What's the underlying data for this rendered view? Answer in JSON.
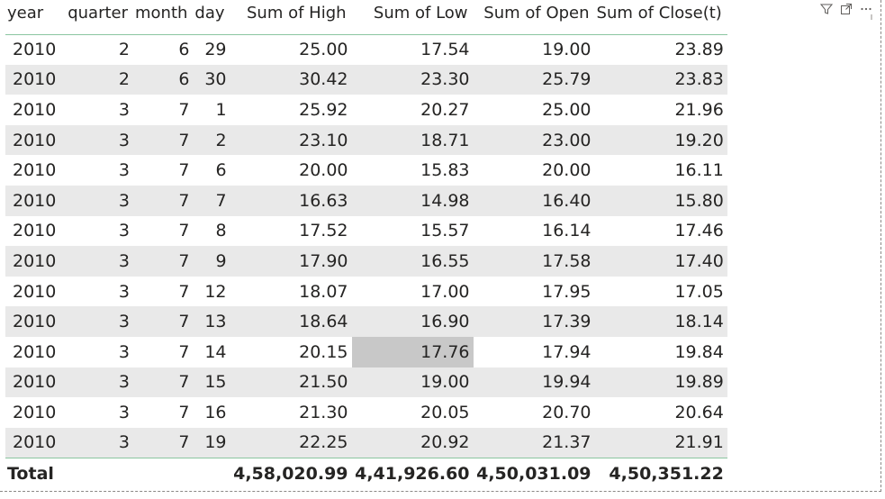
{
  "columns": [
    "year",
    "quarter",
    "month",
    "day",
    "Sum of High",
    "Sum of Low",
    "Sum of Open",
    "Sum of Close(t)"
  ],
  "rows": [
    [
      "2010",
      "2",
      "6",
      "29",
      "25.00",
      "17.54",
      "19.00",
      "23.89"
    ],
    [
      "2010",
      "2",
      "6",
      "30",
      "30.42",
      "23.30",
      "25.79",
      "23.83"
    ],
    [
      "2010",
      "3",
      "7",
      "1",
      "25.92",
      "20.27",
      "25.00",
      "21.96"
    ],
    [
      "2010",
      "3",
      "7",
      "2",
      "23.10",
      "18.71",
      "23.00",
      "19.20"
    ],
    [
      "2010",
      "3",
      "7",
      "6",
      "20.00",
      "15.83",
      "20.00",
      "16.11"
    ],
    [
      "2010",
      "3",
      "7",
      "7",
      "16.63",
      "14.98",
      "16.40",
      "15.80"
    ],
    [
      "2010",
      "3",
      "7",
      "8",
      "17.52",
      "15.57",
      "16.14",
      "17.46"
    ],
    [
      "2010",
      "3",
      "7",
      "9",
      "17.90",
      "16.55",
      "17.58",
      "17.40"
    ],
    [
      "2010",
      "3",
      "7",
      "12",
      "18.07",
      "17.00",
      "17.95",
      "17.05"
    ],
    [
      "2010",
      "3",
      "7",
      "13",
      "18.64",
      "16.90",
      "17.39",
      "18.14"
    ],
    [
      "2010",
      "3",
      "7",
      "14",
      "20.15",
      "17.76",
      "17.94",
      "19.84"
    ],
    [
      "2010",
      "3",
      "7",
      "15",
      "21.50",
      "19.00",
      "19.94",
      "19.89"
    ],
    [
      "2010",
      "3",
      "7",
      "16",
      "21.30",
      "20.05",
      "20.70",
      "20.64"
    ],
    [
      "2010",
      "3",
      "7",
      "19",
      "22.25",
      "20.92",
      "21.37",
      "21.91"
    ]
  ],
  "total": {
    "label": "Total",
    "values": [
      "4,58,020.99",
      "4,41,926.60",
      "4,50,031.09",
      "4,50,351.22"
    ]
  },
  "selected_cell": {
    "row": 10,
    "col": 5
  },
  "colors": {
    "accent_border": "#8bc5a0",
    "band": "#e9e9e9",
    "selected": "#c8c8c8"
  },
  "icons": [
    "filter-icon",
    "focus-mode-icon",
    "more-options-icon"
  ]
}
